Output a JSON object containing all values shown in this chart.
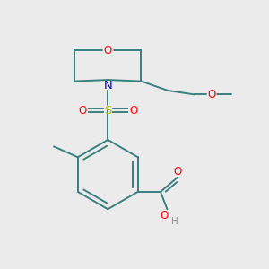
{
  "bg_color": "#ebebeb",
  "bond_color": "#3a8080",
  "o_color": "#ff0000",
  "n_color": "#0000cc",
  "s_color": "#bbbb00",
  "h_color": "#909090",
  "lw": 1.4,
  "fs": 8.5,
  "xlim": [
    0,
    10
  ],
  "ylim": [
    0,
    10
  ]
}
